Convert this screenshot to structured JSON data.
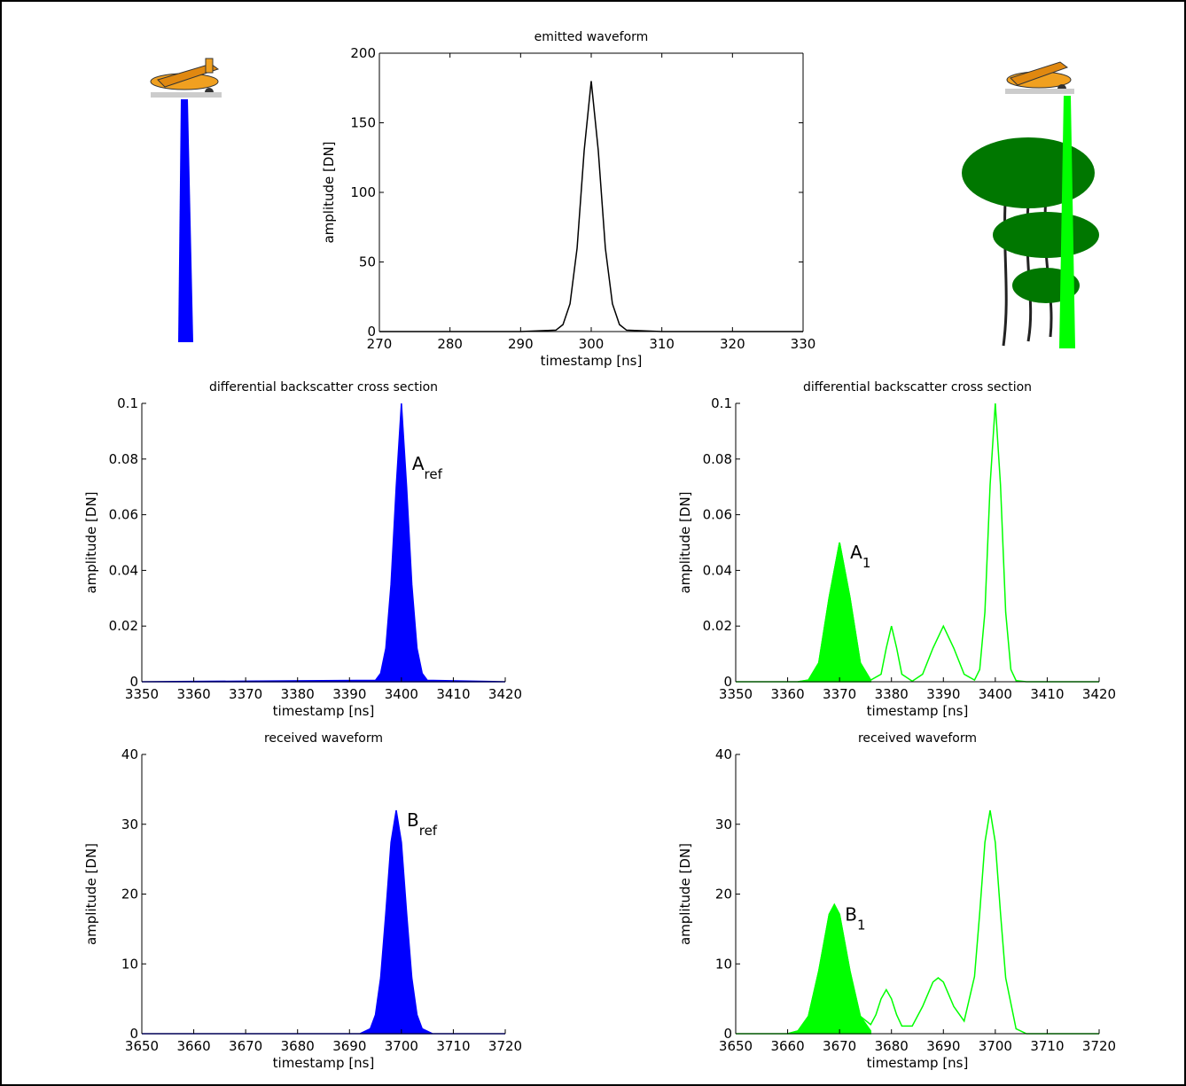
{
  "chart_data": [
    {
      "type": "line",
      "title": "emitted waveform",
      "xlabel": "timestamp [ns]",
      "ylabel": "amplitude [DN]",
      "box": true,
      "xlim": [
        270,
        330
      ],
      "xticks": [
        270,
        280,
        290,
        300,
        310,
        320,
        330
      ],
      "ylim": [
        0,
        200
      ],
      "yticks": [
        0,
        50,
        100,
        150,
        200
      ],
      "series": [
        {
          "color": "#000000",
          "fill": false,
          "x": [
            270,
            290,
            295,
            296,
            297,
            298,
            299,
            300,
            301,
            302,
            303,
            304,
            305,
            310,
            330
          ],
          "values": [
            0,
            0,
            1,
            5,
            20,
            60,
            130,
            180,
            130,
            60,
            20,
            5,
            1,
            0,
            0
          ]
        }
      ]
    },
    {
      "type": "line",
      "title": "differential backscatter cross section",
      "xlabel": "timestamp [ns]",
      "ylabel": "amplitude [DN]",
      "box": false,
      "xlim": [
        3350,
        3420
      ],
      "xticks": [
        3350,
        3360,
        3370,
        3380,
        3390,
        3400,
        3410,
        3420
      ],
      "ylim": [
        0,
        0.1
      ],
      "yticks": [
        0,
        0.02,
        0.04,
        0.06,
        0.08,
        0.1
      ],
      "annotation": {
        "text": "A",
        "sub": "ref"
      },
      "series": [
        {
          "color": "#0000ff",
          "fill": true,
          "x": [
            3350,
            3395,
            3396,
            3397,
            3398,
            3399,
            3400,
            3401,
            3402,
            3403,
            3404,
            3405,
            3420
          ],
          "values": [
            0,
            0.0005,
            0.003,
            0.012,
            0.035,
            0.07,
            0.1,
            0.07,
            0.035,
            0.012,
            0.003,
            0.0005,
            0
          ]
        }
      ]
    },
    {
      "type": "line",
      "title": "differential backscatter cross section",
      "xlabel": "timestamp [ns]",
      "ylabel": "amplitude [DN]",
      "box": false,
      "xlim": [
        3350,
        3420
      ],
      "xticks": [
        3350,
        3360,
        3370,
        3380,
        3390,
        3400,
        3410,
        3420
      ],
      "ylim": [
        0,
        0.1
      ],
      "yticks": [
        0,
        0.02,
        0.04,
        0.06,
        0.08,
        0.1
      ],
      "annotation": {
        "text": "A",
        "sub": "1"
      },
      "series": [
        {
          "color": "#00ff00",
          "fill": true,
          "x": [
            3362,
            3364,
            3366,
            3368,
            3370,
            3372,
            3374,
            3376
          ],
          "values": [
            0,
            0.0006,
            0.0068,
            0.0303,
            0.05,
            0.0303,
            0.0068,
            0.0006
          ]
        },
        {
          "color": "#00ff00",
          "fill": false,
          "x": [
            3350,
            3362,
            3364,
            3366,
            3368,
            3370,
            3372,
            3374,
            3376,
            3378,
            3379,
            3380,
            3381,
            3382,
            3384,
            3386,
            3388,
            3390,
            3392,
            3394,
            3396,
            3397,
            3398,
            3399,
            3400,
            3401,
            3402,
            3403,
            3404,
            3406,
            3420
          ],
          "values": [
            0,
            0,
            0.0006,
            0.0068,
            0.0303,
            0.05,
            0.0303,
            0.0068,
            0.0006,
            0.0027,
            0.0121,
            0.02,
            0.0121,
            0.0027,
            0.0002,
            0.0027,
            0.0121,
            0.02,
            0.0121,
            0.0027,
            0.0006,
            0.0044,
            0.025,
            0.0707,
            0.1,
            0.0707,
            0.025,
            0.0044,
            0.0004,
            0,
            0
          ]
        }
      ]
    },
    {
      "type": "line",
      "title": "received waveform",
      "xlabel": "timestamp [ns]",
      "ylabel": "amplitude [DN]",
      "box": false,
      "xlim": [
        3650,
        3720
      ],
      "xticks": [
        3650,
        3660,
        3670,
        3680,
        3690,
        3700,
        3710,
        3720
      ],
      "ylim": [
        0,
        40
      ],
      "yticks": [
        0,
        10,
        20,
        30,
        40
      ],
      "annotation": {
        "text": "B",
        "sub": "ref"
      },
      "series": [
        {
          "color": "#0000ff",
          "fill": true,
          "x": [
            3650,
            3690,
            3692,
            3694,
            3695,
            3696,
            3697,
            3698,
            3699,
            3700,
            3701,
            3702,
            3703,
            3704,
            3706,
            3708,
            3720
          ],
          "values": [
            0,
            0,
            0,
            0.7,
            2.7,
            8,
            17.3,
            27.4,
            32,
            27.4,
            17.3,
            8,
            2.7,
            0.7,
            0,
            0,
            0
          ]
        }
      ]
    },
    {
      "type": "line",
      "title": "received waveform",
      "xlabel": "timestamp [ns]",
      "ylabel": "amplitude [DN]",
      "box": false,
      "xlim": [
        3650,
        3720
      ],
      "xticks": [
        3650,
        3660,
        3670,
        3680,
        3690,
        3700,
        3710,
        3720
      ],
      "ylim": [
        0,
        40
      ],
      "yticks": [
        0,
        10,
        20,
        30,
        40
      ],
      "annotation": {
        "text": "B",
        "sub": "1"
      },
      "series": [
        {
          "color": "#00ff00",
          "fill": true,
          "x": [
            3660,
            3662,
            3664,
            3666,
            3668,
            3669,
            3670,
            3672,
            3674,
            3676
          ],
          "values": [
            0,
            0.4,
            2.5,
            9.0,
            17.1,
            18.5,
            17.1,
            9.0,
            2.5,
            0.4
          ]
        },
        {
          "color": "#00ff00",
          "fill": false,
          "x": [
            3650,
            3660,
            3662,
            3664,
            3666,
            3668,
            3669,
            3670,
            3672,
            3674,
            3676,
            3677,
            3678,
            3679,
            3680,
            3681,
            3682,
            3684,
            3686,
            3688,
            3689,
            3690,
            3692,
            3694,
            3696,
            3697,
            3698,
            3699,
            3700,
            3701,
            3702,
            3704,
            3706,
            3720
          ],
          "values": [
            0,
            0,
            0.4,
            2.5,
            9.0,
            17.1,
            18.5,
            17.1,
            9.0,
            2.5,
            1.3,
            2.7,
            5.0,
            6.3,
            5.0,
            2.7,
            1.1,
            1.1,
            3.9,
            7.4,
            8,
            7.4,
            3.9,
            1.8,
            8.2,
            17.3,
            27.4,
            32,
            27.4,
            17.3,
            8,
            0.7,
            0,
            0
          ]
        }
      ]
    }
  ]
}
